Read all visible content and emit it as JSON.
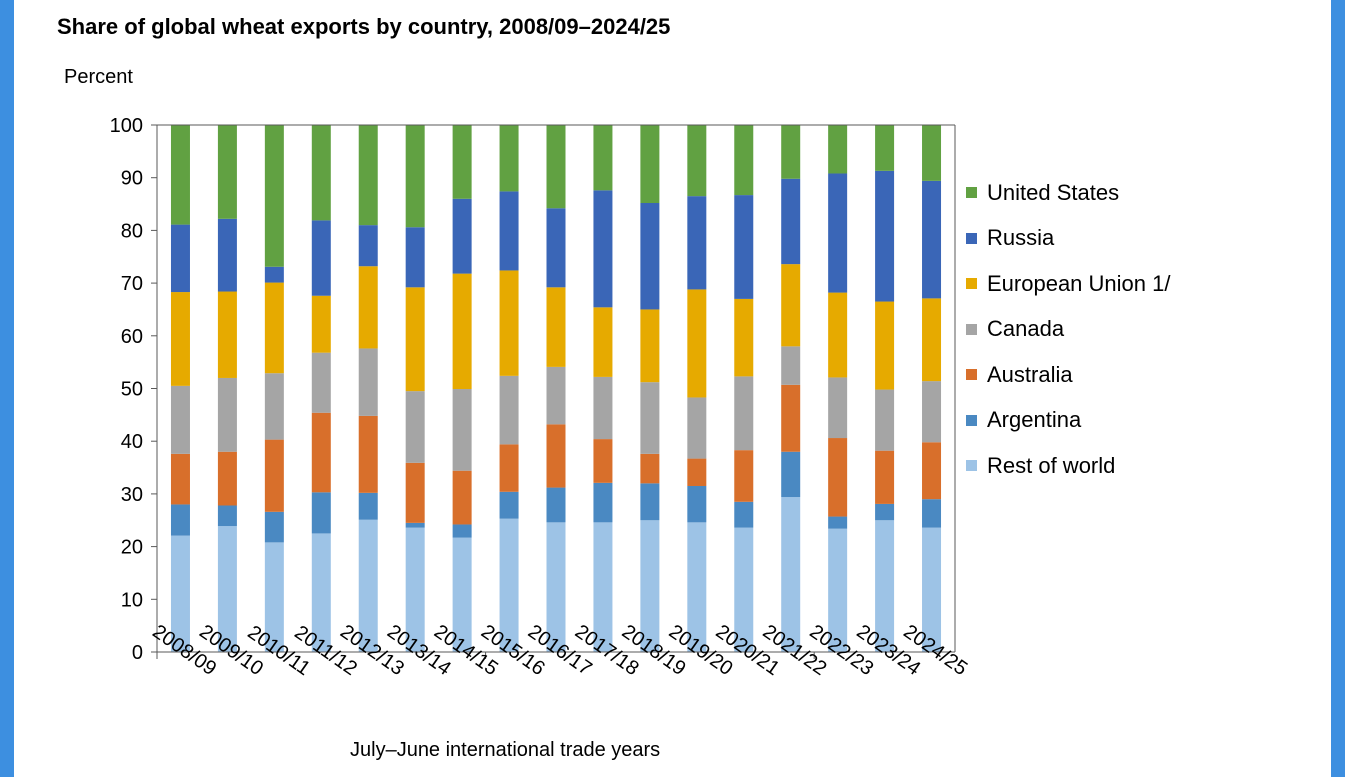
{
  "chart_data": {
    "type": "bar",
    "stacked": true,
    "title": "Share of global wheat exports by country, 2008/09–2024/25",
    "ylabel": "Percent",
    "xlabel": "July–June international trade years",
    "ylim": [
      0,
      100
    ],
    "yticks": [
      0,
      10,
      20,
      30,
      40,
      50,
      60,
      70,
      80,
      90,
      100
    ],
    "grid": false,
    "legend_position": "right",
    "categories": [
      "2008/09",
      "2009/10",
      "2010/11",
      "2011/12",
      "2012/13",
      "2013/14",
      "2014/15",
      "2015/16",
      "2016/17",
      "2017/18",
      "2018/19",
      "2019/20",
      "2020/21",
      "2021/22",
      "2022/23",
      "2023/24",
      "2024/25"
    ],
    "series": [
      {
        "name": "Rest of world",
        "color": "#9dc3e6",
        "values": [
          22.1,
          23.9,
          20.8,
          22.5,
          25.1,
          23.6,
          21.7,
          25.3,
          24.6,
          24.6,
          25.0,
          24.6,
          23.6,
          29.4,
          23.4,
          25.0,
          23.6
        ]
      },
      {
        "name": "Argentina",
        "color": "#4a89c2",
        "values": [
          5.9,
          3.9,
          5.8,
          7.8,
          5.1,
          0.9,
          2.5,
          5.1,
          6.6,
          7.5,
          7.0,
          6.9,
          4.9,
          8.6,
          2.3,
          3.1,
          5.4
        ]
      },
      {
        "name": "Australia",
        "color": "#d86f2b",
        "values": [
          9.6,
          10.2,
          13.7,
          15.1,
          14.6,
          11.4,
          10.2,
          9.0,
          12.0,
          8.3,
          5.6,
          5.2,
          9.8,
          12.7,
          14.9,
          10.1,
          10.8
        ]
      },
      {
        "name": "Canada",
        "color": "#a5a5a5",
        "values": [
          12.9,
          14.0,
          12.6,
          11.4,
          12.8,
          13.6,
          15.5,
          13.0,
          10.9,
          11.8,
          13.6,
          11.6,
          14.0,
          7.3,
          11.5,
          11.6,
          11.6
        ]
      },
      {
        "name": "European Union 1/",
        "color": "#e6aa00",
        "values": [
          17.8,
          16.4,
          17.2,
          10.8,
          15.6,
          19.7,
          21.9,
          20.0,
          15.1,
          13.2,
          13.8,
          20.5,
          14.7,
          15.6,
          16.1,
          16.7,
          15.7
        ]
      },
      {
        "name": "Russia",
        "color": "#3a66b7",
        "values": [
          12.8,
          13.8,
          3.0,
          14.3,
          7.8,
          11.4,
          14.2,
          15.0,
          15.0,
          22.2,
          20.2,
          17.7,
          19.7,
          16.2,
          22.6,
          24.8,
          22.3
        ]
      },
      {
        "name": "United States",
        "color": "#61a142",
        "values": [
          18.9,
          17.8,
          26.9,
          18.1,
          19.0,
          19.4,
          14.0,
          12.6,
          15.8,
          12.4,
          14.8,
          13.5,
          13.3,
          10.2,
          9.2,
          8.7,
          10.6
        ]
      }
    ],
    "legend_order": [
      "United States",
      "Russia",
      "European Union 1/",
      "Canada",
      "Australia",
      "Argentina",
      "Rest of world"
    ]
  }
}
